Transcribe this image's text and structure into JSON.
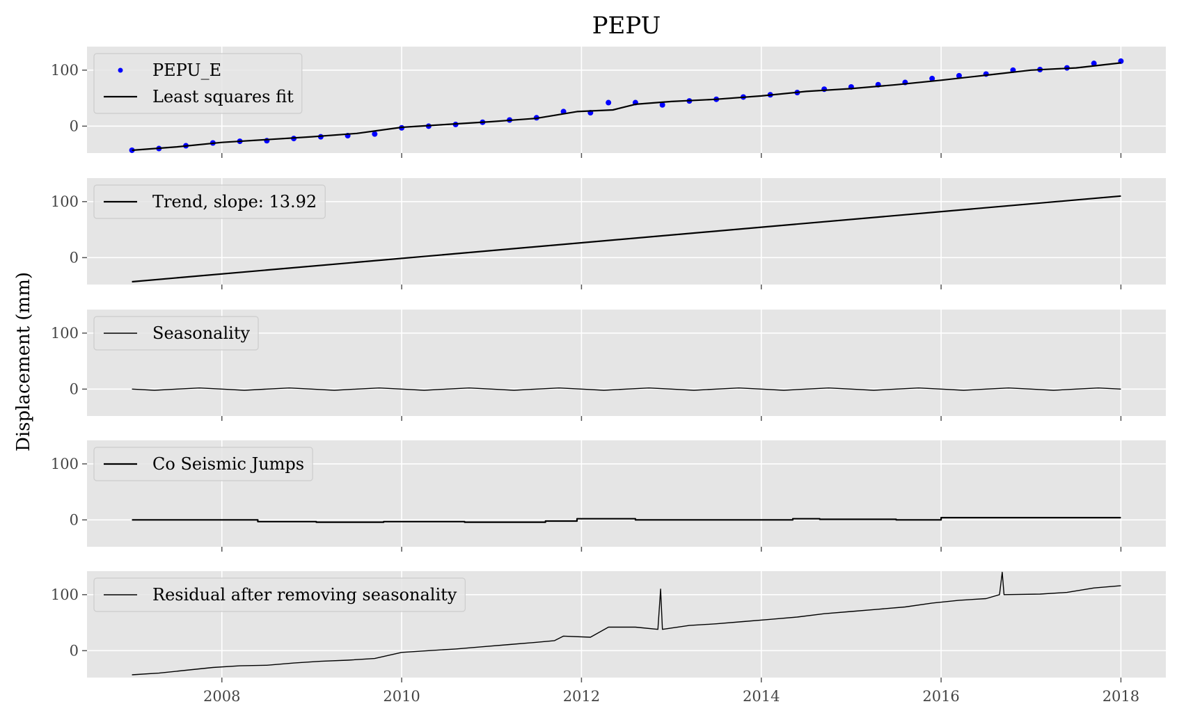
{
  "chart_data": {
    "type": "line",
    "title": "PEPU",
    "ylabel": "Displacement (mm)",
    "xlabel": "",
    "xlim": [
      2006.5,
      2018.5
    ],
    "ylim": [
      -48,
      142
    ],
    "x_ticks": [
      2008,
      2010,
      2012,
      2014,
      2016,
      2018
    ],
    "x_tick_labels": [
      "2008",
      "2010",
      "2012",
      "2014",
      "2016",
      "2018"
    ],
    "y_ticks": [
      0,
      100
    ],
    "y_tick_labels": [
      "0",
      "100"
    ],
    "grid": true,
    "legend_position": "upper-left",
    "panels": [
      {
        "series": [
          {
            "name": "PEPU_E",
            "kind": "scatter",
            "color": "#0000ff",
            "x": [
              2007.0,
              2007.3,
              2007.6,
              2007.9,
              2008.2,
              2008.5,
              2008.8,
              2009.1,
              2009.4,
              2009.7,
              2010.0,
              2010.3,
              2010.6,
              2010.9,
              2011.2,
              2011.5,
              2011.8,
              2012.1,
              2012.3,
              2012.6,
              2012.9,
              2013.2,
              2013.5,
              2013.8,
              2014.1,
              2014.4,
              2014.7,
              2015.0,
              2015.3,
              2015.6,
              2015.9,
              2016.2,
              2016.5,
              2016.8,
              2017.1,
              2017.4,
              2017.7,
              2018.0
            ],
            "y": [
              -43,
              -40,
              -35,
              -30,
              -27,
              -26,
              -22,
              -19,
              -17,
              -14,
              -3,
              0,
              3,
              7,
              11,
              15,
              26,
              24,
              42,
              42,
              38,
              45,
              48,
              52,
              56,
              60,
              66,
              70,
              74,
              78,
              85,
              90,
              93,
              100,
              101,
              104,
              112,
              116
            ]
          },
          {
            "name": "Least squares fit",
            "kind": "line",
            "color": "#000000",
            "x": [
              2007.0,
              2007.5,
              2008.0,
              2008.5,
              2009.0,
              2009.5,
              2010.0,
              2010.5,
              2011.0,
              2011.5,
              2011.95,
              2012.35,
              2012.6,
              2013.0,
              2013.5,
              2014.0,
              2014.5,
              2015.0,
              2015.5,
              2016.0,
              2016.5,
              2017.0,
              2017.5,
              2018.0
            ],
            "y": [
              -43,
              -37,
              -29,
              -24,
              -19,
              -13,
              -2,
              3,
              8,
              14,
              26,
              29,
              39,
              44,
              48,
              54,
              62,
              67,
              74,
              82,
              91,
              100,
              104,
              113
            ]
          }
        ]
      },
      {
        "series": [
          {
            "name": "Trend, slope: 13.92",
            "kind": "line",
            "color": "#000000",
            "x": [
              2007.0,
              2018.0
            ],
            "y": [
              -43,
              110
            ]
          }
        ]
      },
      {
        "series": [
          {
            "name": "Seasonality",
            "kind": "line",
            "color": "#000000",
            "x": [
              2007.0,
              2007.25,
              2007.5,
              2007.75,
              2008.0,
              2008.25,
              2008.5,
              2008.75,
              2009.0,
              2009.25,
              2009.5,
              2009.75,
              2010.0,
              2010.25,
              2010.5,
              2010.75,
              2011.0,
              2011.25,
              2011.5,
              2011.75,
              2012.0,
              2012.25,
              2012.5,
              2012.75,
              2013.0,
              2013.25,
              2013.5,
              2013.75,
              2014.0,
              2014.25,
              2014.5,
              2014.75,
              2015.0,
              2015.25,
              2015.5,
              2015.75,
              2016.0,
              2016.25,
              2016.5,
              2016.75,
              2017.0,
              2017.25,
              2017.5,
              2017.75,
              2018.0
            ],
            "y": [
              0,
              -2,
              0,
              2,
              0,
              -2,
              0,
              2,
              0,
              -2,
              0,
              2,
              0,
              -2,
              0,
              2,
              0,
              -2,
              0,
              2,
              0,
              -2,
              0,
              2,
              0,
              -2,
              0,
              2,
              0,
              -2,
              0,
              2,
              0,
              -2,
              0,
              2,
              0,
              -2,
              0,
              2,
              0,
              -2,
              0,
              2,
              0
            ]
          }
        ]
      },
      {
        "series": [
          {
            "name": "Co Seismic Jumps",
            "kind": "step",
            "color": "#000000",
            "x": [
              2007.0,
              2008.4,
              2008.4,
              2009.05,
              2009.05,
              2009.8,
              2009.8,
              2010.7,
              2010.7,
              2011.6,
              2011.6,
              2011.95,
              2011.95,
              2012.6,
              2012.6,
              2014.35,
              2014.35,
              2014.65,
              2014.65,
              2015.5,
              2015.5,
              2016.0,
              2016.0,
              2018.0
            ],
            "y": [
              0,
              0,
              -3,
              -3,
              -4,
              -4,
              -3,
              -3,
              -4,
              -4,
              -2,
              -2,
              2,
              2,
              0,
              0,
              2,
              2,
              1,
              1,
              0,
              0,
              4,
              4
            ]
          }
        ]
      },
      {
        "series": [
          {
            "name": "Residual after removing seasonality",
            "kind": "line",
            "color": "#000000",
            "x": [
              2007.0,
              2007.3,
              2007.6,
              2007.9,
              2008.2,
              2008.5,
              2008.8,
              2009.1,
              2009.4,
              2009.7,
              2010.0,
              2010.3,
              2010.6,
              2010.9,
              2011.2,
              2011.5,
              2011.7,
              2011.8,
              2012.1,
              2012.3,
              2012.6,
              2012.85,
              2012.88,
              2012.9,
              2013.2,
              2013.5,
              2013.8,
              2014.1,
              2014.4,
              2014.7,
              2015.0,
              2015.3,
              2015.6,
              2015.9,
              2016.2,
              2016.5,
              2016.65,
              2016.68,
              2016.7,
              2017.1,
              2017.4,
              2017.7,
              2018.0
            ],
            "y": [
              -43,
              -40,
              -35,
              -30,
              -27,
              -26,
              -22,
              -19,
              -17,
              -14,
              -3,
              0,
              3,
              7,
              11,
              15,
              18,
              26,
              24,
              42,
              42,
              38,
              110,
              38,
              45,
              48,
              52,
              56,
              60,
              66,
              70,
              74,
              78,
              85,
              90,
              93,
              100,
              140,
              100,
              101,
              104,
              112,
              116
            ]
          }
        ]
      }
    ]
  }
}
